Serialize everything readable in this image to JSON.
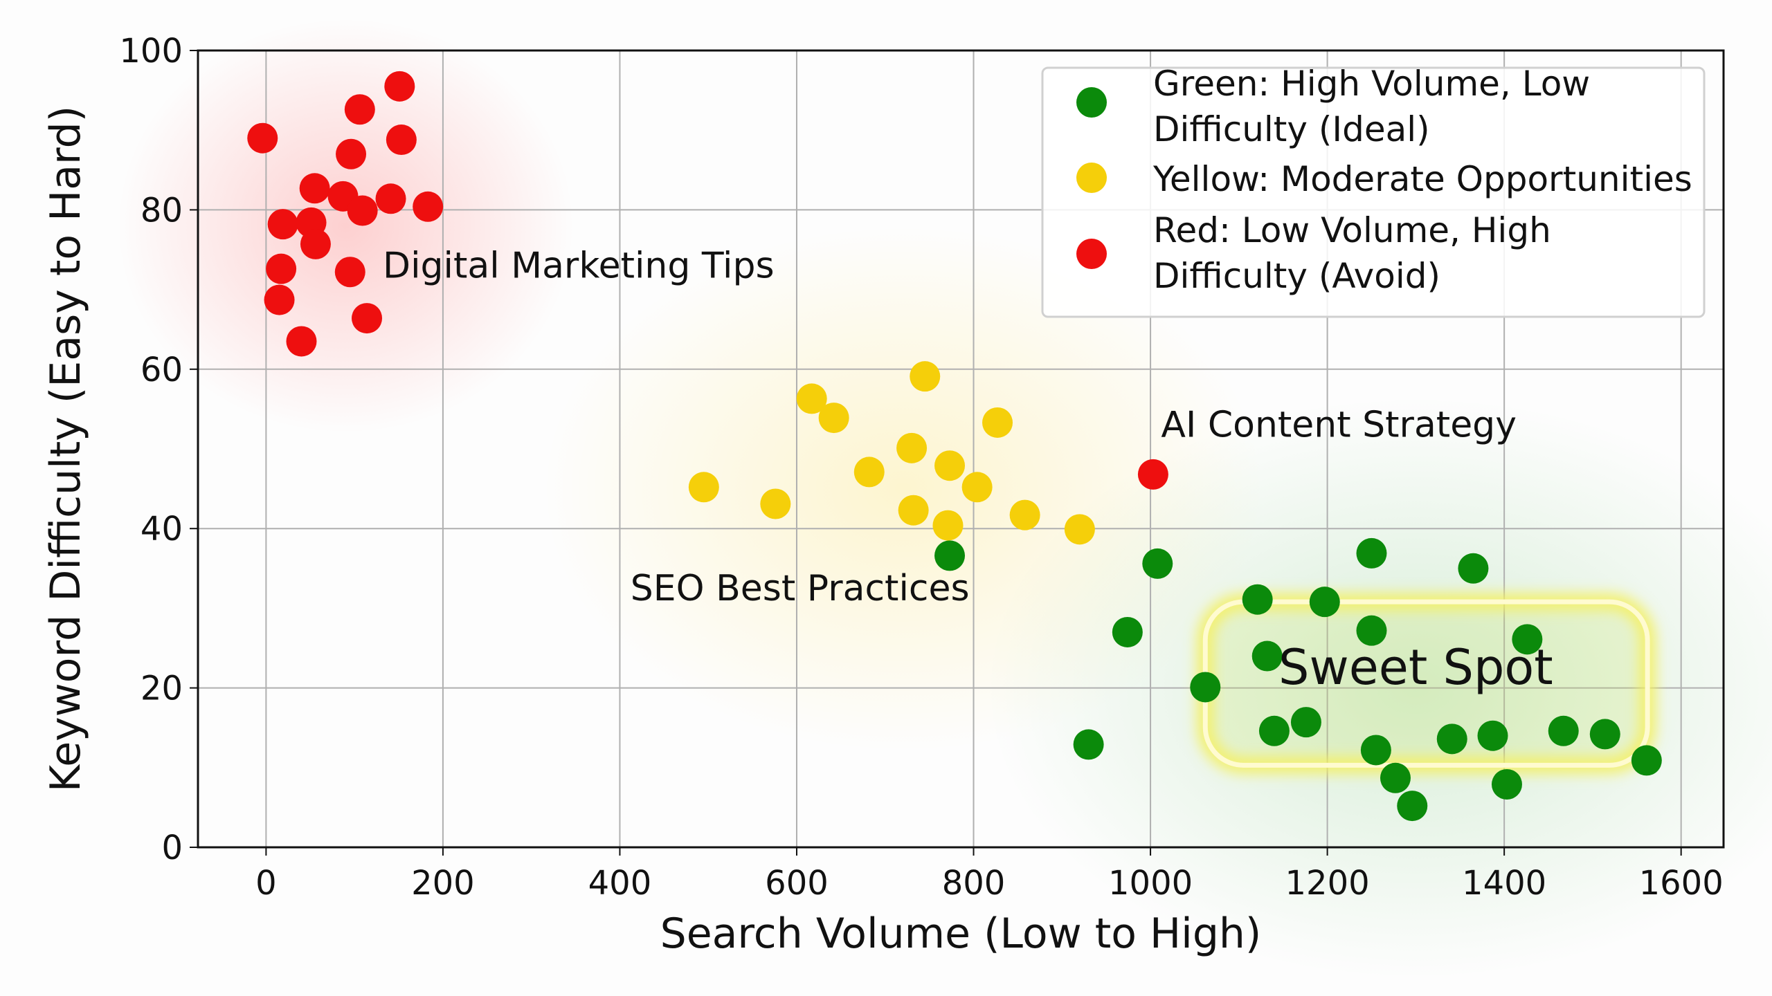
{
  "chart_data": {
    "type": "scatter",
    "title": "",
    "xlabel": "Search Volume (Low to High)",
    "ylabel": "Keyword Difficulty (Easy to Hard)",
    "xlim": [
      -77,
      1648
    ],
    "ylim": [
      0,
      100
    ],
    "xticks": [
      0,
      200,
      400,
      600,
      800,
      1000,
      1200,
      1400,
      1600
    ],
    "yticks": [
      0,
      20,
      40,
      60,
      80,
      100
    ],
    "grid": true,
    "legend_placement": "top-right",
    "series": [
      {
        "name": "Green: High Volume, Low Difficulty (Ideal)",
        "legend_lines": [
          "Green: High Volume, Low",
          "Difficulty (Ideal)"
        ],
        "color": "#0b8a0b",
        "points": [
          [
            773,
            36.6
          ],
          [
            1008,
            35.6
          ],
          [
            974,
            27
          ],
          [
            930,
            12.9
          ],
          [
            1062,
            20.1
          ],
          [
            1121,
            31.1
          ],
          [
            1132,
            24
          ],
          [
            1197,
            30.8
          ],
          [
            1250,
            36.9
          ],
          [
            1365,
            35
          ],
          [
            1250,
            27.2
          ],
          [
            1426,
            26.1
          ],
          [
            1140,
            14.6
          ],
          [
            1176,
            15.7
          ],
          [
            1255,
            12.2
          ],
          [
            1277,
            8.7
          ],
          [
            1296,
            5.2
          ],
          [
            1341,
            13.6
          ],
          [
            1387,
            14
          ],
          [
            1403,
            7.9
          ],
          [
            1467,
            14.6
          ],
          [
            1514,
            14.2
          ],
          [
            1561,
            10.9
          ]
        ]
      },
      {
        "name": "Yellow: Moderate Opportunities",
        "legend_lines": [
          "Yellow: Moderate Opportunities"
        ],
        "color": "#f5cf0a",
        "points": [
          [
            495,
            45.2
          ],
          [
            576,
            43.1
          ],
          [
            617,
            56.3
          ],
          [
            642,
            53.9
          ],
          [
            745,
            59.1
          ],
          [
            827,
            53.3
          ],
          [
            682,
            47.1
          ],
          [
            730,
            50.1
          ],
          [
            773,
            47.9
          ],
          [
            804,
            45.2
          ],
          [
            732,
            42.3
          ],
          [
            771,
            40.4
          ],
          [
            858,
            41.7
          ],
          [
            920,
            39.9
          ]
        ]
      },
      {
        "name": "Red: Low Volume, High Difficulty (Avoid)",
        "legend_lines": [
          "Red: Low Volume, High",
          "Difficulty (Avoid)"
        ],
        "color": "#ee0f0f",
        "points": [
          [
            -4,
            89
          ],
          [
            151,
            95.5
          ],
          [
            106,
            92.6
          ],
          [
            96,
            87
          ],
          [
            153,
            88.8
          ],
          [
            55,
            82.7
          ],
          [
            19,
            78.2
          ],
          [
            51,
            78.4
          ],
          [
            87,
            81.7
          ],
          [
            109,
            79.9
          ],
          [
            141,
            81.4
          ],
          [
            183,
            80.4
          ],
          [
            56,
            75.7
          ],
          [
            17,
            72.6
          ],
          [
            95,
            72.2
          ],
          [
            15,
            68.7
          ],
          [
            114,
            66.4
          ],
          [
            40,
            63.5
          ],
          [
            1003,
            46.8
          ]
        ]
      }
    ],
    "annotations": [
      {
        "text": "Digital Marketing Tips",
        "x": 132,
        "y": 71.5
      },
      {
        "text": "AI Content Strategy",
        "x": 1012,
        "y": 51.5
      },
      {
        "text": "SEO Best Practices",
        "x": 412,
        "y": 31
      },
      {
        "text": "Sweet Spot",
        "x": 1300,
        "y": 20.5
      }
    ],
    "highlight_region": {
      "label": "Sweet Spot",
      "x": [
        1062,
        1562
      ],
      "y": [
        10.3,
        30.8
      ]
    }
  }
}
